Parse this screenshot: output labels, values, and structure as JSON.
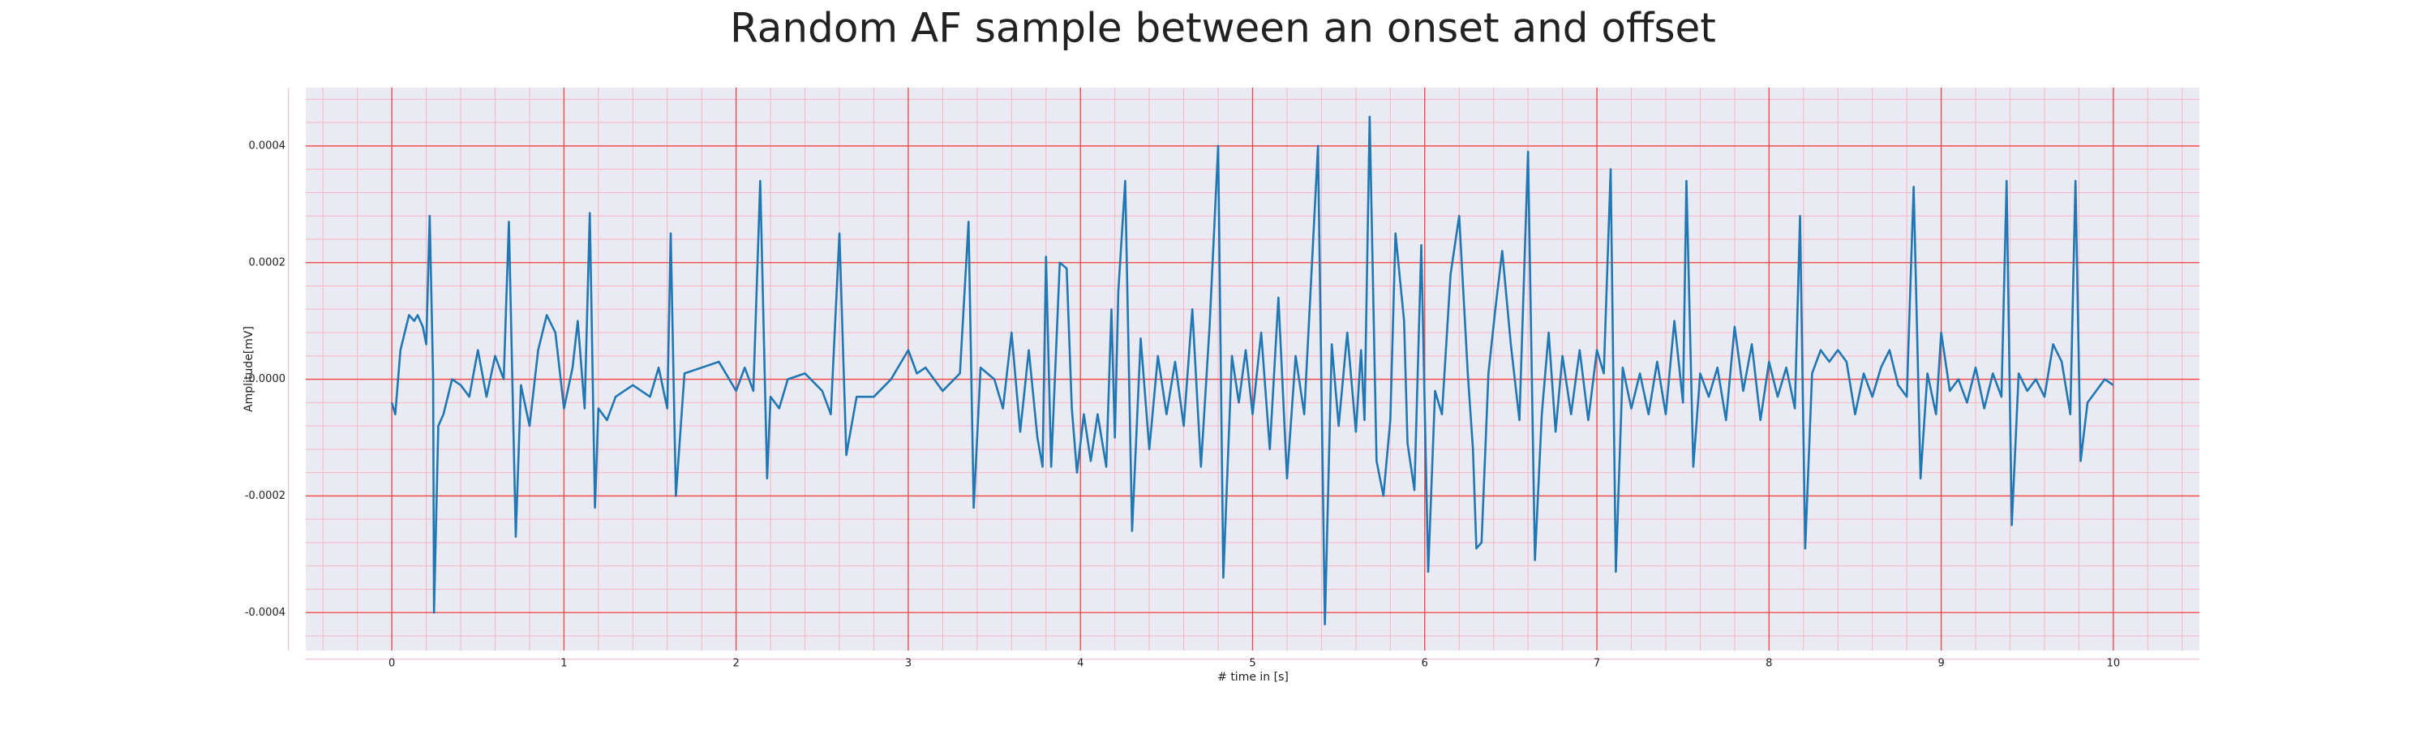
{
  "chart_data": {
    "type": "line",
    "title": "Random AF sample between an onset and offset",
    "xlabel": "# time in [s]",
    "ylabel": "Amplitude[mV]",
    "color": "#1f77b4",
    "grid": true,
    "minor_grid": true,
    "xlim": [
      -0.5,
      10.5
    ],
    "ylim": [
      -0.000465,
      0.0005
    ],
    "xticks": [
      0,
      1,
      2,
      3,
      4,
      5,
      6,
      7,
      8,
      9,
      10
    ],
    "yticks": [
      -0.0004,
      -0.0002,
      {
        "value": 0,
        "label": "0.0000"
      },
      0.0002,
      0.0004
    ],
    "x": [
      0,
      0.02,
      0.05,
      0.1,
      0.13,
      0.15,
      0.18,
      0.2,
      0.22,
      0.24,
      0.245,
      0.27,
      0.3,
      0.35,
      0.4,
      0.45,
      0.5,
      0.55,
      0.6,
      0.65,
      0.68,
      0.72,
      0.75,
      0.8,
      0.85,
      0.9,
      0.95,
      1.0,
      1.05,
      1.08,
      1.12,
      1.15,
      1.18,
      1.2,
      1.25,
      1.3,
      1.4,
      1.5,
      1.55,
      1.6,
      1.62,
      1.65,
      1.7,
      1.8,
      1.9,
      2.0,
      2.05,
      2.1,
      2.14,
      2.18,
      2.2,
      2.25,
      2.3,
      2.4,
      2.5,
      2.55,
      2.6,
      2.64,
      2.7,
      2.8,
      2.9,
      3.0,
      3.05,
      3.1,
      3.2,
      3.3,
      3.35,
      3.38,
      3.42,
      3.5,
      3.55,
      3.6,
      3.65,
      3.7,
      3.75,
      3.78,
      3.8,
      3.83,
      3.88,
      3.92,
      3.95,
      3.98,
      4.02,
      4.06,
      4.1,
      4.15,
      4.18,
      4.2,
      4.22,
      4.26,
      4.3,
      4.35,
      4.4,
      4.45,
      4.5,
      4.55,
      4.6,
      4.65,
      4.7,
      4.75,
      4.8,
      4.83,
      4.88,
      4.92,
      4.96,
      5.0,
      5.05,
      5.1,
      5.15,
      5.2,
      5.25,
      5.3,
      5.38,
      5.42,
      5.46,
      5.5,
      5.55,
      5.6,
      5.63,
      5.65,
      5.68,
      5.72,
      5.76,
      5.8,
      5.83,
      5.88,
      5.9,
      5.94,
      5.98,
      6.02,
      6.06,
      6.1,
      6.15,
      6.2,
      6.25,
      6.28,
      6.3,
      6.33,
      6.37,
      6.41,
      6.45,
      6.5,
      6.55,
      6.6,
      6.64,
      6.68,
      6.72,
      6.76,
      6.8,
      6.85,
      6.9,
      6.95,
      7.0,
      7.04,
      7.08,
      7.11,
      7.15,
      7.2,
      7.25,
      7.3,
      7.35,
      7.4,
      7.45,
      7.5,
      7.52,
      7.56,
      7.6,
      7.65,
      7.7,
      7.75,
      7.8,
      7.85,
      7.9,
      7.95,
      8.0,
      8.05,
      8.1,
      8.15,
      8.18,
      8.21,
      8.25,
      8.3,
      8.35,
      8.4,
      8.45,
      8.5,
      8.55,
      8.6,
      8.65,
      8.7,
      8.75,
      8.8,
      8.84,
      8.88,
      8.92,
      8.97,
      9.0,
      9.05,
      9.1,
      9.15,
      9.2,
      9.25,
      9.3,
      9.35,
      9.38,
      9.41,
      9.45,
      9.5,
      9.55,
      9.6,
      9.65,
      9.7,
      9.75,
      9.78,
      9.81,
      9.85,
      9.9,
      9.95,
      10.0
    ],
    "values": [
      -4e-05,
      -6e-05,
      5e-05,
      0.00011,
      0.0001,
      0.00011,
      9e-05,
      6e-05,
      0.00028,
      0,
      -0.0004,
      -8e-05,
      -6e-05,
      0,
      -1e-05,
      -3e-05,
      5e-05,
      -3e-05,
      4e-05,
      0,
      0.00027,
      -0.00027,
      -1e-05,
      -8e-05,
      5e-05,
      0.00011,
      8e-05,
      -5e-05,
      2e-05,
      0.0001,
      -5e-05,
      0.000285,
      -0.00022,
      -5e-05,
      -7e-05,
      -3e-05,
      -1e-05,
      -3e-05,
      2e-05,
      -5e-05,
      0.00025,
      -0.0002,
      1e-05,
      2e-05,
      3e-05,
      -2e-05,
      2e-05,
      -2e-05,
      0.00034,
      -0.00017,
      -3e-05,
      -5e-05,
      0,
      1e-05,
      -2e-05,
      -6e-05,
      0.00025,
      -0.00013,
      -3e-05,
      -3e-05,
      0,
      5e-05,
      1e-05,
      2e-05,
      -2e-05,
      1e-05,
      0.00027,
      -0.00022,
      2e-05,
      0,
      -5e-05,
      8e-05,
      -9e-05,
      5e-05,
      -0.0001,
      -0.00015,
      0.00021,
      -0.00015,
      0.0002,
      0.00019,
      -5e-05,
      -0.00016,
      -6e-05,
      -0.00014,
      -6e-05,
      -0.00015,
      0.00012,
      -0.0001,
      0.00015,
      0.00034,
      -0.00026,
      7e-05,
      -0.00012,
      4e-05,
      -6e-05,
      3e-05,
      -8e-05,
      0.00012,
      -0.00015,
      9e-05,
      0.0004,
      -0.00034,
      4e-05,
      -4e-05,
      5e-05,
      -6e-05,
      8e-05,
      -0.00012,
      0.00014,
      -0.00017,
      4e-05,
      -6e-05,
      0.0004,
      -0.00042,
      6e-05,
      -8e-05,
      8e-05,
      -9e-05,
      5e-05,
      -7e-05,
      0.00045,
      -0.00014,
      -0.0002,
      -7e-05,
      0.00025,
      0.0001,
      -0.00011,
      -0.00019,
      0.00023,
      -0.00033,
      -2e-05,
      -6e-05,
      0.00018,
      0.00028,
      1e-05,
      -0.00012,
      -0.00029,
      -0.00028,
      1e-05,
      0.00012,
      0.00022,
      6e-05,
      -7e-05,
      0.00039,
      -0.00031,
      -6e-05,
      8e-05,
      -9e-05,
      4e-05,
      -6e-05,
      5e-05,
      -7e-05,
      5e-05,
      1e-05,
      0.00036,
      -0.00033,
      2e-05,
      -5e-05,
      1e-05,
      -6e-05,
      3e-05,
      -6e-05,
      0.0001,
      -4e-05,
      0.00034,
      -0.00015,
      1e-05,
      -3e-05,
      2e-05,
      -7e-05,
      9e-05,
      -2e-05,
      6e-05,
      -7e-05,
      3e-05,
      -3e-05,
      2e-05,
      -5e-05,
      0.00028,
      -0.00029,
      1e-05,
      5e-05,
      3e-05,
      5e-05,
      3e-05,
      -6e-05,
      1e-05,
      -3e-05,
      2e-05,
      5e-05,
      -1e-05,
      -3e-05,
      0.00033,
      -0.00017,
      1e-05,
      -6e-05,
      8e-05,
      -2e-05,
      0,
      -4e-05,
      2e-05,
      -5e-05,
      1e-05,
      -3e-05,
      0.00034,
      -0.00025,
      1e-05,
      -2e-05,
      0,
      -3e-05,
      6e-05,
      3e-05,
      -6e-05,
      0.00034,
      -0.00014,
      -4e-05,
      -2e-05,
      0,
      -1e-05
    ]
  }
}
